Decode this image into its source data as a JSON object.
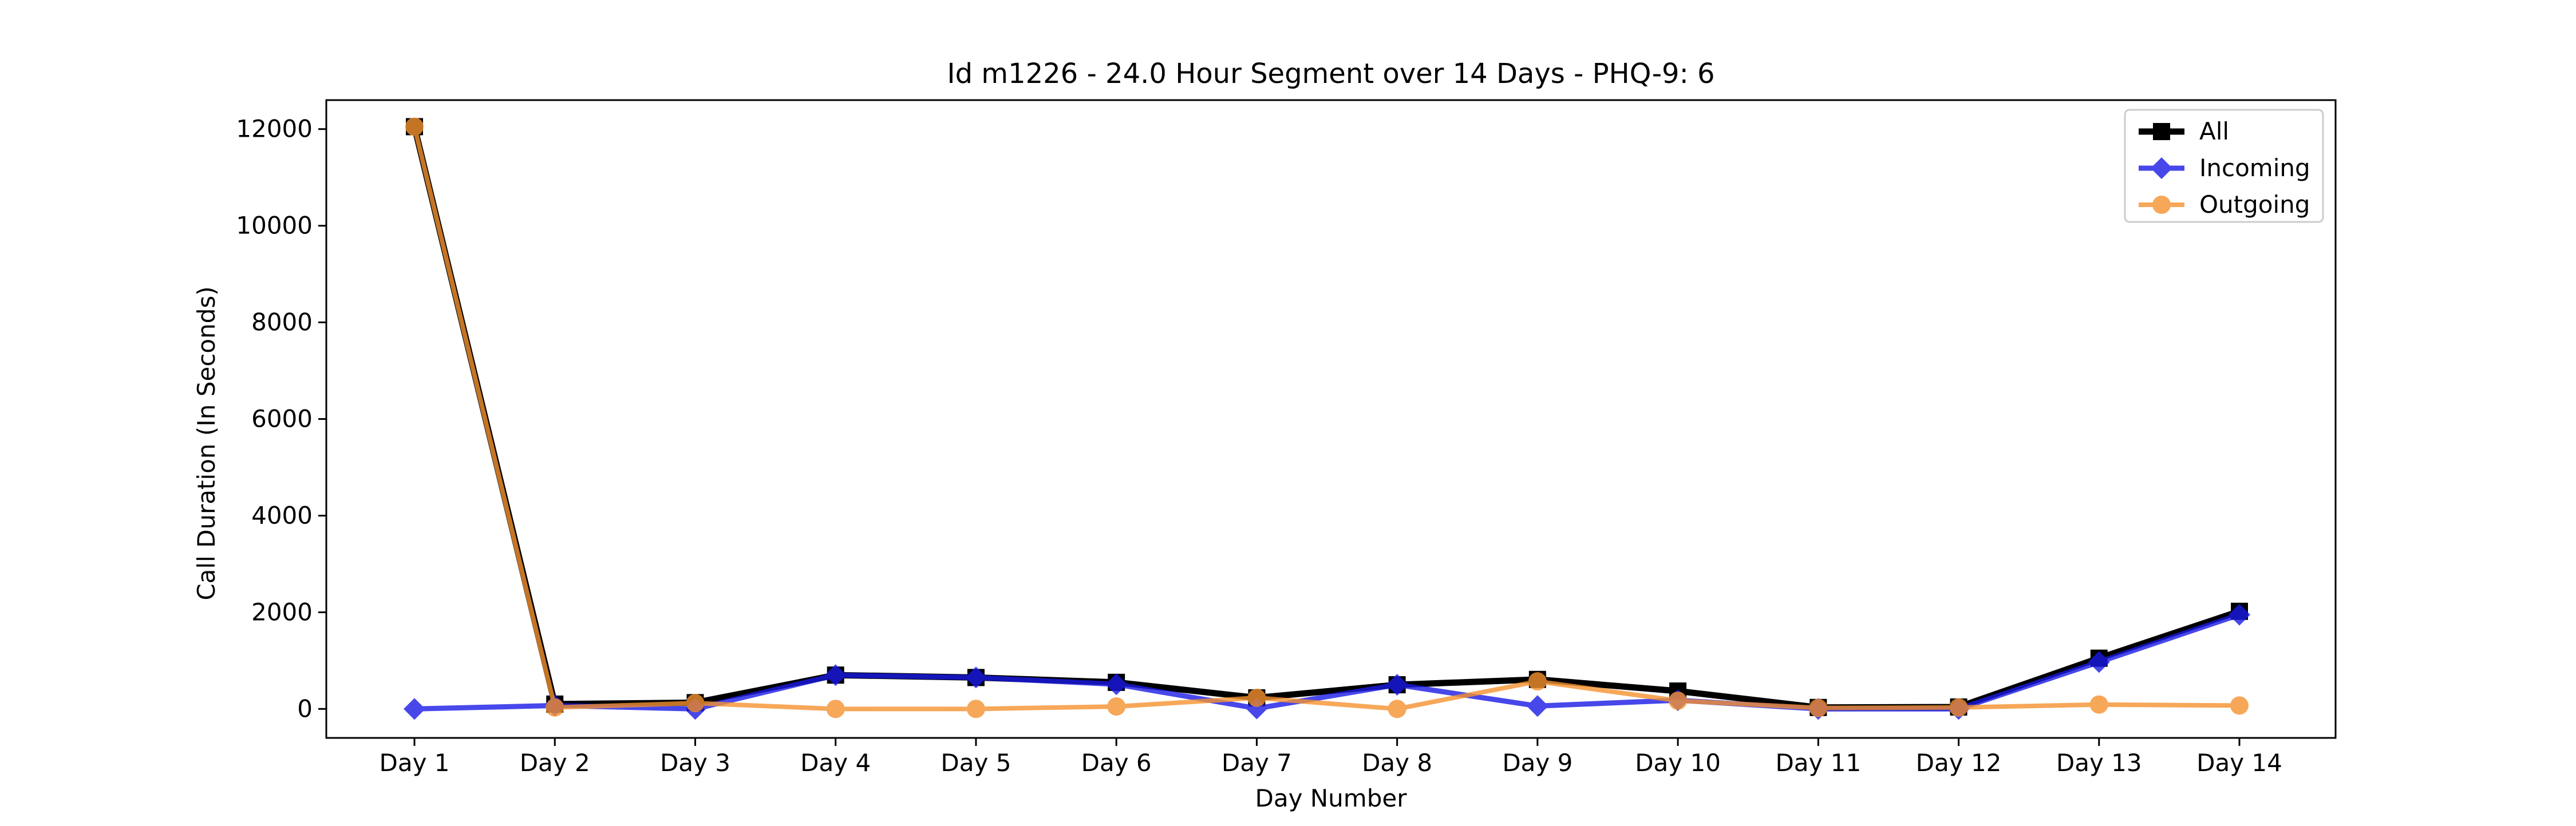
{
  "chart_data": {
    "type": "line",
    "title": "Id m1226 - 24.0 Hour Segment over 14 Days - PHQ-9: 6",
    "xlabel": "Day Number",
    "ylabel": "Call Duration (In Seconds)",
    "categories": [
      "Day 1",
      "Day 2",
      "Day 3",
      "Day 4",
      "Day 5",
      "Day 6",
      "Day 7",
      "Day 8",
      "Day 9",
      "Day 10",
      "Day 11",
      "Day 12",
      "Day 13",
      "Day 14"
    ],
    "ylim": [
      -600,
      12600
    ],
    "yticks": [
      0,
      2000,
      4000,
      6000,
      8000,
      10000,
      12000
    ],
    "grid": false,
    "legend_position": "top-right",
    "series": [
      {
        "name": "All",
        "color": "#000000",
        "marker": "square",
        "values": [
          12050,
          100,
          130,
          700,
          650,
          550,
          230,
          500,
          610,
          370,
          30,
          40,
          1050,
          2020
        ]
      },
      {
        "name": "Incoming",
        "color": "#1a1ae6",
        "marker": "diamond",
        "values": [
          0,
          70,
          0,
          700,
          650,
          510,
          10,
          500,
          60,
          180,
          0,
          0,
          970,
          1950
        ]
      },
      {
        "name": "Outgoing",
        "color": "#f5922f",
        "marker": "circle",
        "values": [
          12050,
          30,
          120,
          0,
          0,
          50,
          230,
          0,
          570,
          170,
          20,
          30,
          90,
          70
        ]
      }
    ]
  }
}
